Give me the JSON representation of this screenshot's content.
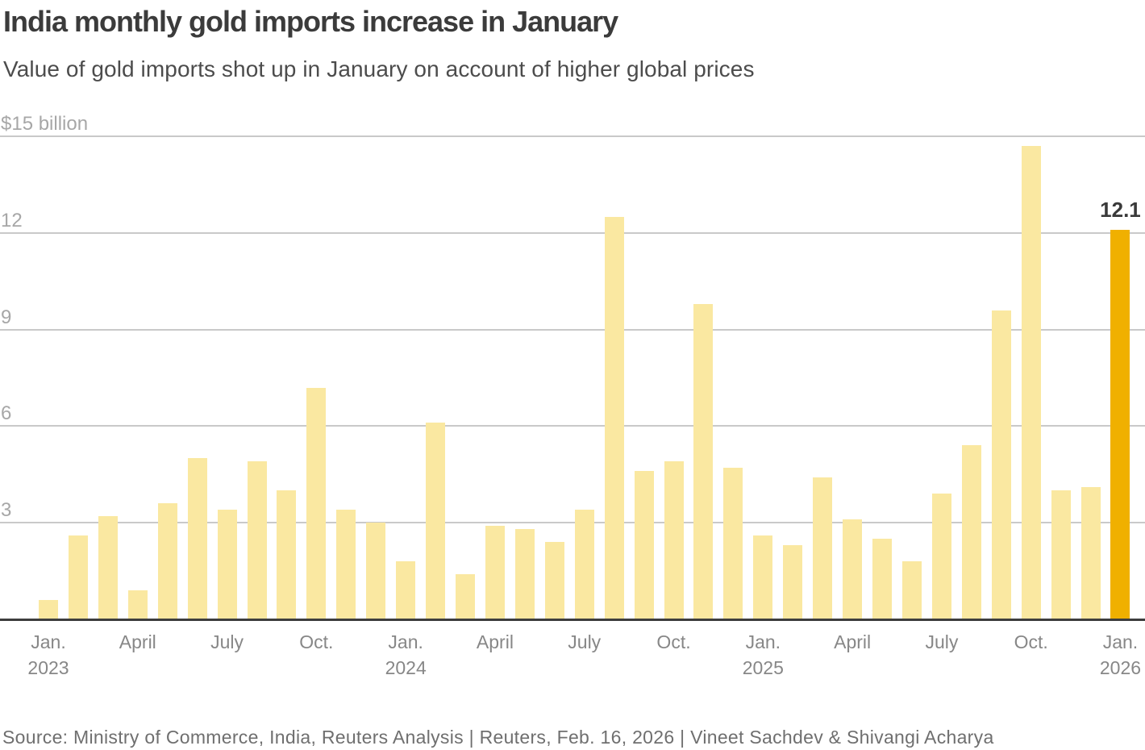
{
  "header": {
    "title": "India monthly gold imports increase in January",
    "subtitle": "Value of gold imports shot up in January on account of higher global prices"
  },
  "chart_data": {
    "type": "bar",
    "title": "India monthly gold imports increase in January",
    "subtitle": "Value of gold imports shot up in January on account of higher global prices",
    "ylabel": "$ billion",
    "ylim": [
      0,
      15.1
    ],
    "grid": true,
    "categories": [
      "Jan. 2023",
      "Feb. 2023",
      "Mar. 2023",
      "Apr. 2023",
      "May 2023",
      "Jun. 2023",
      "Jul. 2023",
      "Aug. 2023",
      "Sep. 2023",
      "Oct. 2023",
      "Nov. 2023",
      "Dec. 2023",
      "Jan. 2024",
      "Feb. 2024",
      "Mar. 2024",
      "Apr. 2024",
      "May 2024",
      "Jun. 2024",
      "Jul. 2024",
      "Aug. 2024",
      "Sep. 2024",
      "Oct. 2024",
      "Nov. 2024",
      "Dec. 2024",
      "Jan. 2025",
      "Feb. 2025",
      "Mar. 2025",
      "Apr. 2025",
      "May 2025",
      "Jun. 2025",
      "Jul. 2025",
      "Aug. 2025",
      "Sep. 2025",
      "Oct. 2025",
      "Nov. 2025",
      "Dec. 2025",
      "Jan. 2026"
    ],
    "values": [
      0.6,
      2.6,
      3.2,
      0.9,
      3.6,
      5.0,
      3.4,
      4.9,
      4.0,
      7.2,
      3.4,
      3.0,
      1.8,
      6.1,
      1.4,
      2.9,
      2.8,
      2.4,
      3.4,
      12.5,
      4.6,
      4.9,
      9.8,
      4.7,
      2.6,
      2.3,
      4.4,
      3.1,
      2.5,
      1.8,
      3.9,
      5.4,
      9.6,
      14.7,
      4.0,
      4.1,
      12.1
    ],
    "highlight_index": 36,
    "highlight_label": "12.1",
    "y_ticks": [
      {
        "value": 3,
        "label": "3"
      },
      {
        "value": 6,
        "label": "6"
      },
      {
        "value": 9,
        "label": "9"
      },
      {
        "value": 12,
        "label": "12"
      },
      {
        "value": 15,
        "label": "$15 billion"
      }
    ],
    "x_ticks": [
      {
        "index": 0,
        "month": "Jan.",
        "year": "2023"
      },
      {
        "index": 3,
        "month": "April"
      },
      {
        "index": 6,
        "month": "July"
      },
      {
        "index": 9,
        "month": "Oct."
      },
      {
        "index": 12,
        "month": "Jan.",
        "year": "2024"
      },
      {
        "index": 15,
        "month": "April"
      },
      {
        "index": 18,
        "month": "July"
      },
      {
        "index": 21,
        "month": "Oct."
      },
      {
        "index": 24,
        "month": "Jan.",
        "year": "2025"
      },
      {
        "index": 27,
        "month": "April"
      },
      {
        "index": 30,
        "month": "July"
      },
      {
        "index": 33,
        "month": "Oct."
      },
      {
        "index": 36,
        "month": "Jan.",
        "year": "2026"
      }
    ],
    "colors": {
      "bar": "#fae8a1",
      "bar_highlight": "#f0b000",
      "gridline": "#c9c9c9",
      "axis": "#3d3d3d"
    },
    "legend": null
  },
  "footer": {
    "source": "Source: Ministry of Commerce, India, Reuters Analysis | Reuters, Feb. 16, 2026 | Vineet Sachdev & Shivangi Acharya"
  }
}
